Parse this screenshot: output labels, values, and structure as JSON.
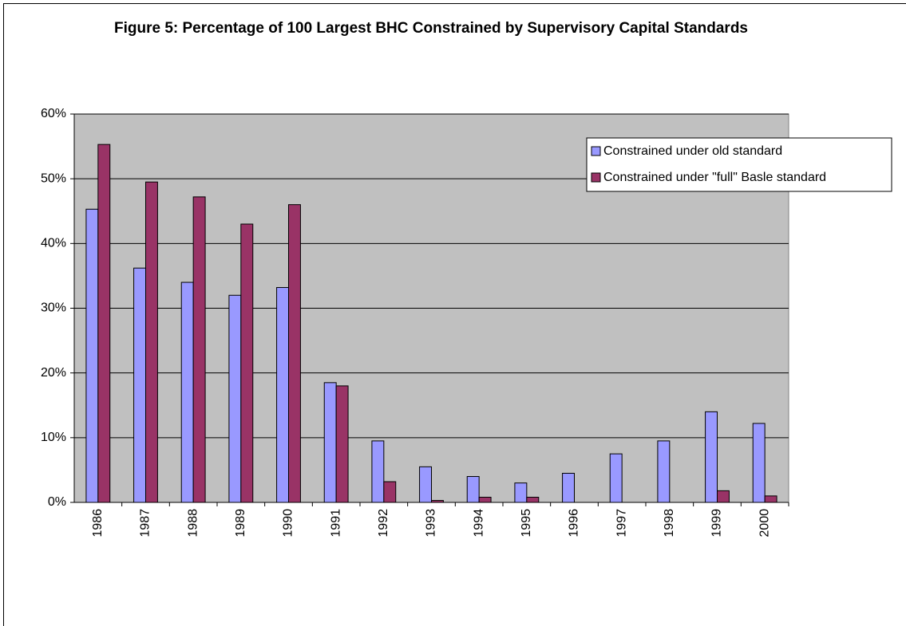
{
  "chart_data": {
    "type": "bar",
    "title": "Figure 5: Percentage of 100 Largest BHC Constrained by Supervisory Capital Standards",
    "categories": [
      "1986",
      "1987",
      "1988",
      "1989",
      "1990",
      "1991",
      "1992",
      "1993",
      "1994",
      "1995",
      "1996",
      "1997",
      "1998",
      "1999",
      "2000"
    ],
    "series": [
      {
        "name": "Constrained under old standard",
        "color": "#9999ff",
        "values": [
          45.3,
          36.2,
          34,
          32,
          33.2,
          18.5,
          9.5,
          5.5,
          4,
          3,
          4.5,
          7.5,
          9.5,
          14,
          12.2
        ]
      },
      {
        "name": "Constrained under \"full\" Basle standard",
        "color": "#993366",
        "values": [
          55.3,
          49.5,
          47.2,
          43,
          46,
          18,
          3.2,
          0.3,
          0.8,
          0.8,
          0,
          0,
          0,
          1.8,
          1
        ]
      }
    ],
    "ylim": [
      0,
      60
    ],
    "yticks": [
      {
        "value": 0,
        "label": "0%"
      },
      {
        "value": 10,
        "label": "10%"
      },
      {
        "value": 20,
        "label": "20%"
      },
      {
        "value": 30,
        "label": "30%"
      },
      {
        "value": 40,
        "label": "40%"
      },
      {
        "value": 50,
        "label": "50%"
      },
      {
        "value": 60,
        "label": "60%"
      }
    ],
    "grid": true,
    "legend": "upper-right"
  }
}
